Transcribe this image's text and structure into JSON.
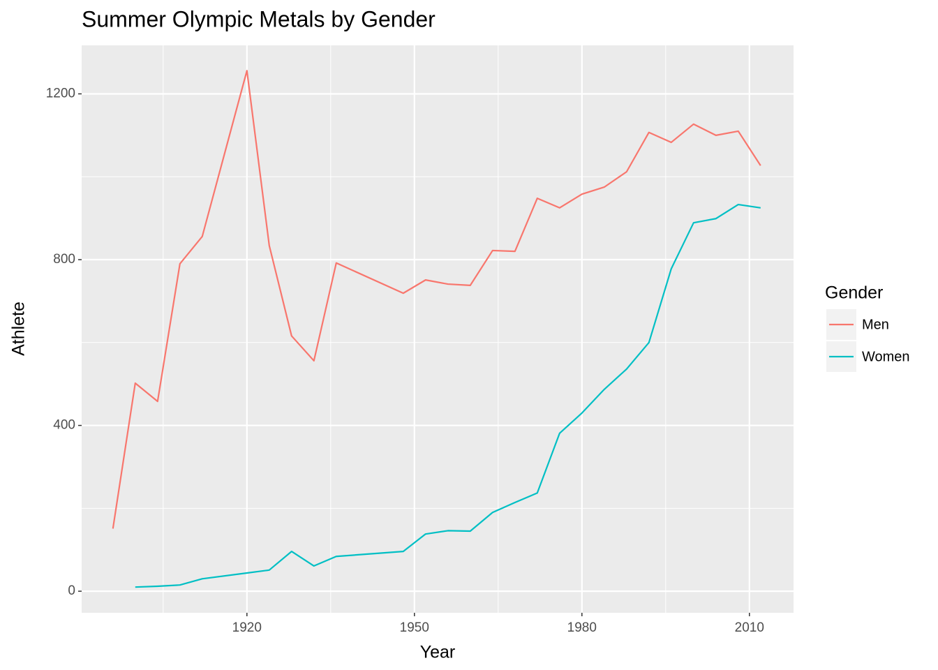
{
  "chart_data": {
    "type": "line",
    "title": "Summer Olympic Metals by Gender",
    "x_label": "Year",
    "y_label": "Athlete",
    "legend_title": "Gender",
    "legend_position": "right",
    "grid": true,
    "x": [
      1896,
      1900,
      1904,
      1908,
      1912,
      1920,
      1924,
      1928,
      1932,
      1936,
      1948,
      1952,
      1956,
      1960,
      1964,
      1968,
      1972,
      1976,
      1980,
      1984,
      1988,
      1992,
      1996,
      2000,
      2004,
      2008,
      2012
    ],
    "series": [
      {
        "name": "Men",
        "color": "#F8766D",
        "values": [
          151,
          502,
          458,
          790,
          856,
          1256,
          834,
          616,
          556,
          792,
          719,
          751,
          741,
          738,
          822,
          820,
          948,
          925,
          958,
          975,
          1012,
          1107,
          1083,
          1127,
          1100,
          1110,
          1027
        ]
      },
      {
        "name": "Women",
        "color": "#00BFC4",
        "values": [
          null,
          10,
          12,
          15,
          30,
          44,
          51,
          96,
          61,
          84,
          96,
          138,
          146,
          145,
          190,
          214,
          237,
          381,
          430,
          487,
          536,
          600,
          778,
          889,
          899,
          933,
          925
        ]
      }
    ],
    "xlim": [
      1890.4,
      2017.9
    ],
    "ylim": [
      -52,
      1317
    ],
    "xticks": [
      1920,
      1950,
      1980,
      2010
    ],
    "yticks": [
      0,
      400,
      800,
      1200
    ],
    "x_minor_ticks": [
      1905,
      1935,
      1965,
      1995
    ],
    "y_minor_ticks": [
      200,
      600,
      1000
    ]
  }
}
